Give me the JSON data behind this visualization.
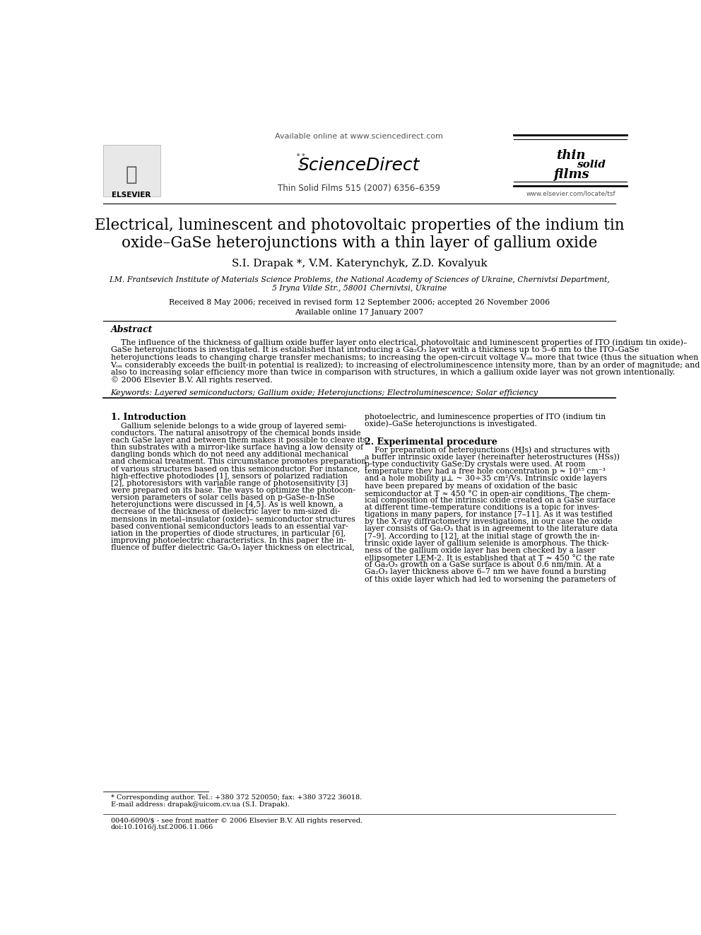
{
  "bg_color": "#ffffff",
  "title_line1": "Electrical, luminescent and photovoltaic properties of the indium tin",
  "title_line2": "oxide–GaSe heterojunctions with a thin layer of gallium oxide",
  "authors": "S.I. Drapak *, V.M. Katerynchyk, Z.D. Kovalyuk",
  "affiliation1": "I.M. Frantsevich Institute of Materials Science Problems, the National Academy of Sciences of Ukraine, Chernivtsi Department,",
  "affiliation2": "5 Iryna Vilde Str., 58001 Chernivtsi, Ukraine",
  "received": "Received 8 May 2006; received in revised form 12 September 2006; accepted 26 November 2006",
  "available": "Available online 17 January 2007",
  "journal_ref": "Thin Solid Films 515 (2007) 6356–6359",
  "online_text": "Available online at www.sciencedirect.com",
  "elsevier_text": "ELSEVIER",
  "website": "www.elsevier.com/locate/tsf",
  "abstract_title": "Abstract",
  "abstract_lines": [
    "    The influence of the thickness of gallium oxide buffer layer onto electrical, photovoltaic and luminescent properties of ITO (indium tin oxide)–",
    "GaSe heterojunctions is investigated. It is established that introducing a Ga₂O₃ layer with a thickness up to 5–6 nm to the ITO–GaSe",
    "heterojunctions leads to changing charge transfer mechanisms; to increasing the open-circuit voltage Vₒₙ more that twice (thus the situation when",
    "Vₒₙ considerably exceeds the built-in potential is realized); to increasing of electroluminescence intensity more, than by an order of magnitude; and",
    "also to increasing solar efficiency more than twice in comparison with structures, in which a gallium oxide layer was not grown intentionally.",
    "© 2006 Elsevier B.V. All rights reserved."
  ],
  "keywords": "Keywords: Layered semiconductors; Gallium oxide; Heterojunctions; Electroluminescence; Solar efficiency",
  "section1_title": "1. Introduction",
  "section1_col1_lines": [
    "    Gallium selenide belongs to a wide group of layered semi-",
    "conductors. The natural anisotropy of the chemical bonds inside",
    "each GaSe layer and between them makes it possible to cleave its",
    "thin substrates with a mirror-like surface having a low density of",
    "dangling bonds which do not need any additional mechanical",
    "and chemical treatment. This circumstance promotes preparation",
    "of various structures based on this semiconductor. For instance,",
    "high-effective photodiodes [1], sensors of polarized radiation",
    "[2], photoresistors with variable range of photosensitivity [3]",
    "were prepared on its base. The ways to optimize the photocon-",
    "version parameters of solar cells based on p-GaSe–n-InSe",
    "heterojunctions were discussed in [4,5]. As is well known, a",
    "decrease of the thickness of dielectric layer to nm-sized di-",
    "mensions in metal–insulator (oxide)– semiconductor structures",
    "based conventional semiconductors leads to an essential var-",
    "iation in the properties of diode structures, in particular [6],",
    "improving photoelectric characteristics. In this paper the in-",
    "fluence of buffer dielectric Ga₂O₃ layer thickness on electrical,"
  ],
  "section1_col2_lines": [
    "photoelectric, and luminescence properties of ITO (indium tin",
    "oxide)–GaSe heterojunctions is investigated."
  ],
  "section2_title": "2. Experimental procedure",
  "section2_col2_lines": [
    "    For preparation of heterojunctions (HJs) and structures with",
    "a buffer intrinsic oxide layer (hereinafter heterostructures (HSs))",
    "p-type conductivity GaSe:Dy crystals were used. At room",
    "temperature they had a free hole concentration p ≈ 10¹⁵ cm⁻³",
    "and a hole mobility μ⊥ ~ 30÷35 cm²/Vs. Intrinsic oxide layers",
    "have been prepared by means of oxidation of the basic",
    "semiconductor at T ≈ 450 °C in open-air conditions. The chem-",
    "ical composition of the intrinsic oxide created on a GaSe surface",
    "at different time–temperature conditions is a topic for inves-",
    "tigations in many papers, for instance [7–11]. As it was testified",
    "by the X-ray diffractometry investigations, in our case the oxide",
    "layer consists of Ga₂O₃ that is in agreement to the literature data",
    "[7–9]. According to [12], at the initial stage of growth the in-",
    "trinsic oxide layer of gallium selenide is amorphous. The thick-",
    "ness of the gallium oxide layer has been checked by a laser",
    "ellipsometer LEM-2. It is established that at T ≈ 450 °C the rate",
    "of Ga₂O₃ growth on a GaSe surface is about 0.6 nm/min. At a",
    "Ga₂O₃ layer thickness above 6–7 nm we have found a bursting",
    "of this oxide layer which had led to worsening the parameters of"
  ],
  "footnote1": "* Corresponding author. Tel.: +380 372 520050; fax: +380 3722 36018.",
  "footnote2": "E-mail address: drapak@uicom.cv.ua (S.I. Drapak).",
  "footer1": "0040-6090/$ - see front matter © 2006 Elsevier B.V. All rights reserved.",
  "footer2": "doi:10.1016/j.tsf.2006.11.066"
}
